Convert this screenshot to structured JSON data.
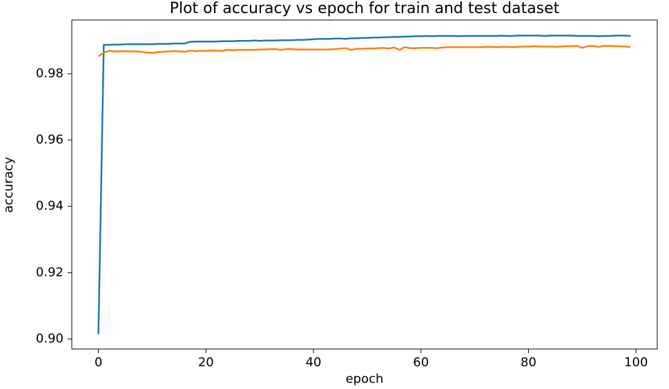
{
  "chart_data": {
    "type": "line",
    "title": "Plot of accuracy vs epoch for train and test dataset",
    "x_label": "epoch",
    "y_label": "accuracy",
    "x": [
      0,
      1,
      2,
      3,
      4,
      5,
      6,
      7,
      8,
      9,
      10,
      11,
      12,
      13,
      14,
      15,
      16,
      17,
      18,
      19,
      20,
      21,
      22,
      23,
      24,
      25,
      26,
      27,
      28,
      29,
      30,
      31,
      32,
      33,
      34,
      35,
      36,
      37,
      38,
      39,
      40,
      41,
      42,
      43,
      44,
      45,
      46,
      47,
      48,
      49,
      50,
      51,
      52,
      53,
      54,
      55,
      56,
      57,
      58,
      59,
      60,
      61,
      62,
      63,
      64,
      65,
      66,
      67,
      68,
      69,
      70,
      71,
      72,
      73,
      74,
      75,
      76,
      77,
      78,
      79,
      80,
      81,
      82,
      83,
      84,
      85,
      86,
      87,
      88,
      89,
      90,
      91,
      92,
      93,
      94,
      95,
      96,
      97,
      98,
      99
    ],
    "series": [
      {
        "color": "#1f77b4",
        "values": [
          0.9015,
          0.9887,
          0.9887,
          0.9888,
          0.9888,
          0.9889,
          0.9889,
          0.9889,
          0.9889,
          0.9889,
          0.9889,
          0.989,
          0.989,
          0.989,
          0.9891,
          0.9891,
          0.9891,
          0.9896,
          0.9897,
          0.9897,
          0.9897,
          0.9897,
          0.9897,
          0.9898,
          0.9898,
          0.9898,
          0.9899,
          0.9899,
          0.9899,
          0.99,
          0.9899,
          0.99,
          0.99,
          0.99,
          0.9901,
          0.9901,
          0.9901,
          0.9902,
          0.9902,
          0.9903,
          0.9904,
          0.9905,
          0.9905,
          0.9905,
          0.9906,
          0.9906,
          0.9905,
          0.9907,
          0.9907,
          0.9908,
          0.9908,
          0.9909,
          0.9909,
          0.991,
          0.991,
          0.9911,
          0.9911,
          0.9912,
          0.9912,
          0.9913,
          0.9913,
          0.9914,
          0.9913,
          0.9914,
          0.9914,
          0.9914,
          0.9914,
          0.9913,
          0.9914,
          0.9914,
          0.9914,
          0.9914,
          0.9914,
          0.9914,
          0.9914,
          0.9915,
          0.9914,
          0.9914,
          0.9915,
          0.9915,
          0.9915,
          0.9915,
          0.9915,
          0.9914,
          0.9915,
          0.9915,
          0.9915,
          0.9915,
          0.9915,
          0.9914,
          0.9914,
          0.9914,
          0.9914,
          0.9913,
          0.9914,
          0.9914,
          0.9915,
          0.9915,
          0.9915,
          0.9914
        ]
      },
      {
        "color": "#ff7f0e",
        "values": [
          0.9852,
          0.9864,
          0.9869,
          0.9867,
          0.9868,
          0.9868,
          0.9867,
          0.9867,
          0.9866,
          0.9864,
          0.9863,
          0.9865,
          0.9866,
          0.9867,
          0.9868,
          0.9868,
          0.9866,
          0.987,
          0.9868,
          0.9869,
          0.9869,
          0.987,
          0.987,
          0.9869,
          0.9872,
          0.9871,
          0.9872,
          0.9872,
          0.9872,
          0.9872,
          0.9873,
          0.9873,
          0.9874,
          0.9874,
          0.9872,
          0.9874,
          0.9874,
          0.9873,
          0.9873,
          0.9873,
          0.9873,
          0.9873,
          0.9873,
          0.9873,
          0.9874,
          0.9876,
          0.9877,
          0.9872,
          0.9875,
          0.9875,
          0.9876,
          0.9876,
          0.9877,
          0.9878,
          0.9876,
          0.9879,
          0.9872,
          0.988,
          0.9877,
          0.9877,
          0.9878,
          0.9878,
          0.9878,
          0.9877,
          0.9879,
          0.988,
          0.988,
          0.988,
          0.988,
          0.988,
          0.988,
          0.988,
          0.9881,
          0.9881,
          0.988,
          0.9881,
          0.9881,
          0.988,
          0.9881,
          0.9882,
          0.9882,
          0.9883,
          0.9882,
          0.9882,
          0.9882,
          0.9881,
          0.9882,
          0.9883,
          0.9883,
          0.9884,
          0.9878,
          0.9883,
          0.9884,
          0.9881,
          0.9884,
          0.9884,
          0.9883,
          0.9883,
          0.9882,
          0.988
        ]
      }
    ],
    "xlim": [
      -4.95,
      103.95
    ],
    "xticks": [
      0,
      20,
      40,
      60,
      80,
      100
    ],
    "ylim": [
      0.897,
      0.9962
    ],
    "yticks": [
      {
        "value": 0.9,
        "label": "0.90"
      },
      0.92,
      0.94,
      0.96,
      0.98
    ]
  }
}
